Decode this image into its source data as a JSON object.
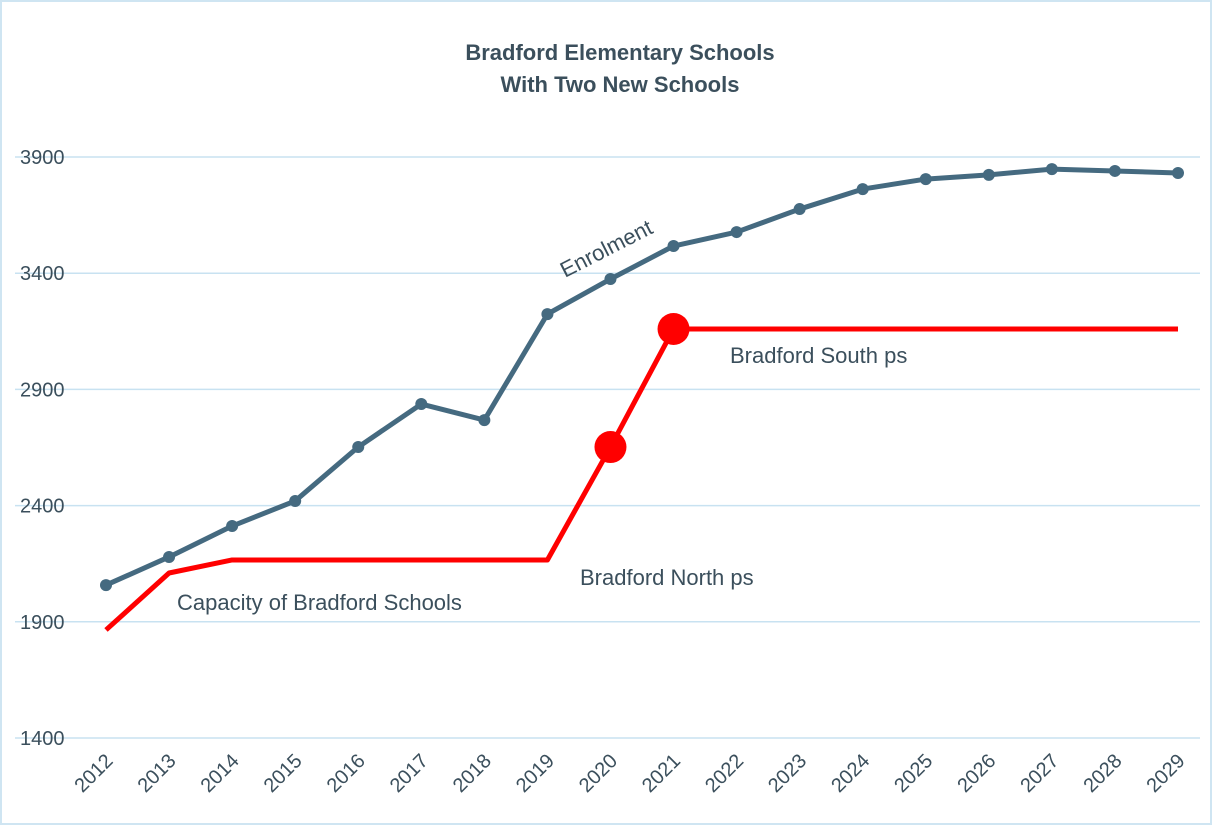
{
  "chart_data": {
    "type": "line",
    "title": [
      "Bradford Elementary Schools",
      "With Two New Schools"
    ],
    "categories": [
      "2012",
      "2013",
      "2014",
      "2015",
      "2016",
      "2017",
      "2018",
      "2019",
      "2020",
      "2021",
      "2022",
      "2023",
      "2024",
      "2025",
      "2026",
      "2027",
      "2028",
      "2029"
    ],
    "series": [
      {
        "name": "Enrolment",
        "color": "#456a80",
        "values": [
          2058,
          2179,
          2312,
          2420,
          2652,
          2837,
          2768,
          3224,
          3375,
          3517,
          3577,
          3676,
          3762,
          3805,
          3823,
          3848,
          3840,
          3831
        ],
        "markers": true
      },
      {
        "name": "Capacity of Bradford Schools",
        "color": "#ff0000",
        "values": [
          1865,
          2110,
          2166,
          2166,
          2166,
          2166,
          2166,
          2166,
          2652,
          3160,
          3160,
          3160,
          3160,
          3160,
          3160,
          3160,
          3160,
          3160
        ],
        "marker_indices": [
          8,
          9
        ]
      }
    ],
    "annotations": [
      "Bradford North ps",
      "Bradford South ps"
    ],
    "ylim": [
      1400,
      3900
    ],
    "yticks": [
      1400,
      1900,
      2400,
      2900,
      3400,
      3900
    ],
    "grid": true
  }
}
